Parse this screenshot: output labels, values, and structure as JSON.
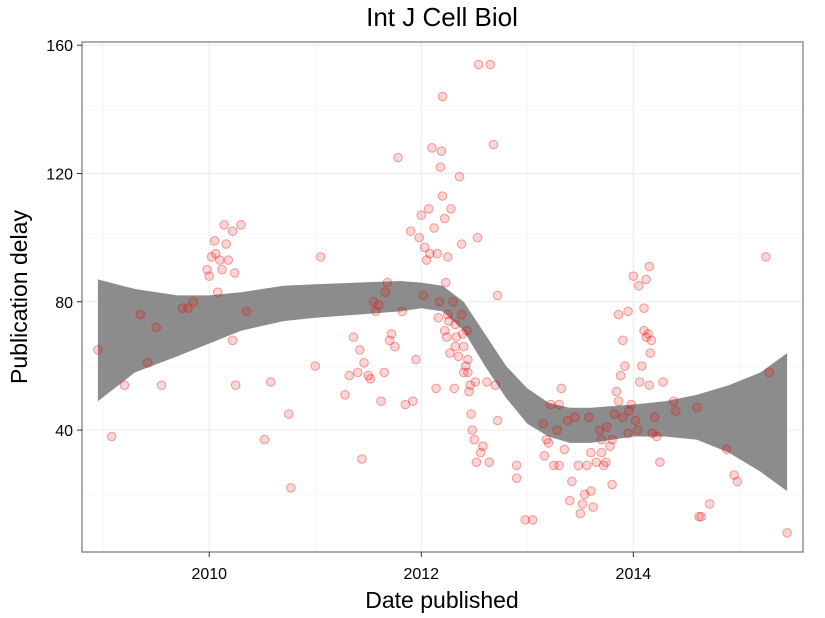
{
  "chart_data": {
    "type": "scatter",
    "title": "Int J Cell Biol",
    "xlabel": "Date published",
    "ylabel": "Publication delay",
    "xlim": [
      2008.8,
      2015.6
    ],
    "ylim": [
      2,
      161
    ],
    "x_ticks": [
      2010,
      2012,
      2014
    ],
    "x_tick_labels": [
      "2010",
      "2012",
      "2014"
    ],
    "y_ticks": [
      40,
      80,
      120,
      160
    ],
    "y_tick_labels": [
      "40",
      "80",
      "120",
      "160"
    ],
    "grid": true,
    "point_color": "#ff0000",
    "smooth_band_color": "#8c8c8c",
    "points": [
      [
        2008.95,
        65
      ],
      [
        2009.08,
        38
      ],
      [
        2009.2,
        54
      ],
      [
        2009.35,
        76
      ],
      [
        2009.42,
        61
      ],
      [
        2009.5,
        72
      ],
      [
        2009.55,
        54
      ],
      [
        2009.75,
        78
      ],
      [
        2009.8,
        78
      ],
      [
        2009.85,
        80
      ],
      [
        2009.98,
        90
      ],
      [
        2010.0,
        88
      ],
      [
        2010.02,
        94
      ],
      [
        2010.05,
        99
      ],
      [
        2010.06,
        95
      ],
      [
        2010.08,
        83
      ],
      [
        2010.1,
        93
      ],
      [
        2010.12,
        90
      ],
      [
        2010.14,
        104
      ],
      [
        2010.16,
        98
      ],
      [
        2010.18,
        93
      ],
      [
        2010.22,
        102
      ],
      [
        2010.24,
        89
      ],
      [
        2010.22,
        68
      ],
      [
        2010.25,
        54
      ],
      [
        2010.3,
        104
      ],
      [
        2010.35,
        77
      ],
      [
        2010.52,
        37
      ],
      [
        2010.58,
        55
      ],
      [
        2010.75,
        45
      ],
      [
        2010.77,
        22
      ],
      [
        2011.0,
        60
      ],
      [
        2011.05,
        94
      ],
      [
        2011.28,
        51
      ],
      [
        2011.32,
        57
      ],
      [
        2011.36,
        69
      ],
      [
        2011.4,
        58
      ],
      [
        2011.42,
        65
      ],
      [
        2011.44,
        31
      ],
      [
        2011.46,
        61
      ],
      [
        2011.5,
        57
      ],
      [
        2011.52,
        56
      ],
      [
        2011.55,
        80
      ],
      [
        2011.57,
        77
      ],
      [
        2011.6,
        79
      ],
      [
        2011.62,
        49
      ],
      [
        2011.65,
        58
      ],
      [
        2011.66,
        83
      ],
      [
        2011.68,
        86
      ],
      [
        2011.7,
        68
      ],
      [
        2011.72,
        70
      ],
      [
        2011.75,
        66
      ],
      [
        2011.78,
        125
      ],
      [
        2011.82,
        77
      ],
      [
        2011.85,
        48
      ],
      [
        2011.9,
        102
      ],
      [
        2011.92,
        49
      ],
      [
        2011.95,
        62
      ],
      [
        2011.98,
        100
      ],
      [
        2012.0,
        107
      ],
      [
        2012.02,
        82
      ],
      [
        2012.03,
        97
      ],
      [
        2012.05,
        93
      ],
      [
        2012.07,
        109
      ],
      [
        2012.08,
        95
      ],
      [
        2012.1,
        128
      ],
      [
        2012.12,
        103
      ],
      [
        2012.14,
        53
      ],
      [
        2012.15,
        95
      ],
      [
        2012.16,
        75
      ],
      [
        2012.17,
        80
      ],
      [
        2012.18,
        122
      ],
      [
        2012.19,
        127
      ],
      [
        2012.2,
        144
      ],
      [
        2012.2,
        113
      ],
      [
        2012.22,
        106
      ],
      [
        2012.22,
        71
      ],
      [
        2012.23,
        86
      ],
      [
        2012.24,
        69
      ],
      [
        2012.25,
        94
      ],
      [
        2012.25,
        76
      ],
      [
        2012.26,
        74
      ],
      [
        2012.27,
        64
      ],
      [
        2012.28,
        109
      ],
      [
        2012.3,
        80
      ],
      [
        2012.31,
        53
      ],
      [
        2012.32,
        73
      ],
      [
        2012.32,
        66
      ],
      [
        2012.33,
        69
      ],
      [
        2012.35,
        63
      ],
      [
        2012.36,
        119
      ],
      [
        2012.38,
        98
      ],
      [
        2012.38,
        76
      ],
      [
        2012.39,
        70
      ],
      [
        2012.4,
        66
      ],
      [
        2012.4,
        58
      ],
      [
        2012.42,
        60
      ],
      [
        2012.43,
        71
      ],
      [
        2012.44,
        62
      ],
      [
        2012.44,
        58
      ],
      [
        2012.45,
        52
      ],
      [
        2012.46,
        54
      ],
      [
        2012.47,
        45
      ],
      [
        2012.48,
        40
      ],
      [
        2012.5,
        37
      ],
      [
        2012.51,
        55
      ],
      [
        2012.52,
        30
      ],
      [
        2012.53,
        100
      ],
      [
        2012.54,
        154
      ],
      [
        2012.56,
        33
      ],
      [
        2012.58,
        35
      ],
      [
        2012.62,
        55
      ],
      [
        2012.64,
        30
      ],
      [
        2012.65,
        154
      ],
      [
        2012.68,
        129
      ],
      [
        2012.7,
        54
      ],
      [
        2012.72,
        82
      ],
      [
        2012.72,
        43
      ],
      [
        2012.9,
        29
      ],
      [
        2012.9,
        25
      ],
      [
        2012.98,
        12
      ],
      [
        2013.05,
        12
      ],
      [
        2013.15,
        42
      ],
      [
        2013.16,
        32
      ],
      [
        2013.18,
        37
      ],
      [
        2013.2,
        36
      ],
      [
        2013.22,
        48
      ],
      [
        2013.25,
        29
      ],
      [
        2013.28,
        40
      ],
      [
        2013.3,
        29
      ],
      [
        2013.3,
        48
      ],
      [
        2013.32,
        53
      ],
      [
        2013.35,
        34
      ],
      [
        2013.38,
        43
      ],
      [
        2013.4,
        18
      ],
      [
        2013.42,
        24
      ],
      [
        2013.45,
        44
      ],
      [
        2013.48,
        29
      ],
      [
        2013.5,
        14
      ],
      [
        2013.52,
        17
      ],
      [
        2013.54,
        20
      ],
      [
        2013.56,
        29
      ],
      [
        2013.58,
        44
      ],
      [
        2013.6,
        21
      ],
      [
        2013.6,
        33
      ],
      [
        2013.62,
        16
      ],
      [
        2013.65,
        30
      ],
      [
        2013.68,
        40
      ],
      [
        2013.7,
        37
      ],
      [
        2013.7,
        33
      ],
      [
        2013.72,
        29
      ],
      [
        2013.74,
        30
      ],
      [
        2013.75,
        41
      ],
      [
        2013.78,
        35
      ],
      [
        2013.8,
        37
      ],
      [
        2013.8,
        23
      ],
      [
        2013.82,
        45
      ],
      [
        2013.84,
        52
      ],
      [
        2013.86,
        49
      ],
      [
        2013.86,
        76
      ],
      [
        2013.88,
        57
      ],
      [
        2013.9,
        68
      ],
      [
        2013.9,
        44
      ],
      [
        2013.92,
        60
      ],
      [
        2013.95,
        39
      ],
      [
        2013.95,
        77
      ],
      [
        2013.96,
        46
      ],
      [
        2013.98,
        48
      ],
      [
        2014.0,
        88
      ],
      [
        2014.02,
        43
      ],
      [
        2014.04,
        40
      ],
      [
        2014.05,
        85
      ],
      [
        2014.06,
        55
      ],
      [
        2014.08,
        60
      ],
      [
        2014.1,
        71
      ],
      [
        2014.1,
        78
      ],
      [
        2014.12,
        87
      ],
      [
        2014.12,
        69
      ],
      [
        2014.14,
        70
      ],
      [
        2014.15,
        91
      ],
      [
        2014.15,
        54
      ],
      [
        2014.16,
        64
      ],
      [
        2014.17,
        68
      ],
      [
        2014.18,
        39
      ],
      [
        2014.2,
        44
      ],
      [
        2014.22,
        38
      ],
      [
        2014.25,
        30
      ],
      [
        2014.28,
        55
      ],
      [
        2014.38,
        49
      ],
      [
        2014.4,
        46
      ],
      [
        2014.6,
        47
      ],
      [
        2014.62,
        13
      ],
      [
        2014.64,
        13
      ],
      [
        2014.72,
        17
      ],
      [
        2014.88,
        34
      ],
      [
        2014.95,
        26
      ],
      [
        2014.98,
        24
      ],
      [
        2015.25,
        94
      ],
      [
        2015.28,
        58
      ],
      [
        2015.45,
        8
      ]
    ],
    "smooth_band": {
      "x": [
        2008.95,
        2009.3,
        2009.7,
        2010.0,
        2010.3,
        2010.7,
        2011.0,
        2011.4,
        2011.8,
        2012.0,
        2012.2,
        2012.4,
        2012.6,
        2012.8,
        2013.0,
        2013.2,
        2013.4,
        2013.6,
        2013.8,
        2014.0,
        2014.3,
        2014.6,
        2014.9,
        2015.2,
        2015.45
      ],
      "upper": [
        87,
        84,
        82,
        82,
        83,
        85,
        85.5,
        86,
        86.5,
        86,
        85,
        80,
        70,
        60,
        53,
        48.5,
        47,
        47,
        47.5,
        48,
        49,
        51,
        54,
        58,
        64
      ],
      "lower": [
        49,
        58,
        63,
        67,
        71,
        74,
        75,
        76,
        77,
        78,
        77,
        71,
        60,
        50,
        42,
        38,
        36,
        36,
        37,
        38,
        38,
        37,
        33,
        27,
        21
      ]
    }
  }
}
